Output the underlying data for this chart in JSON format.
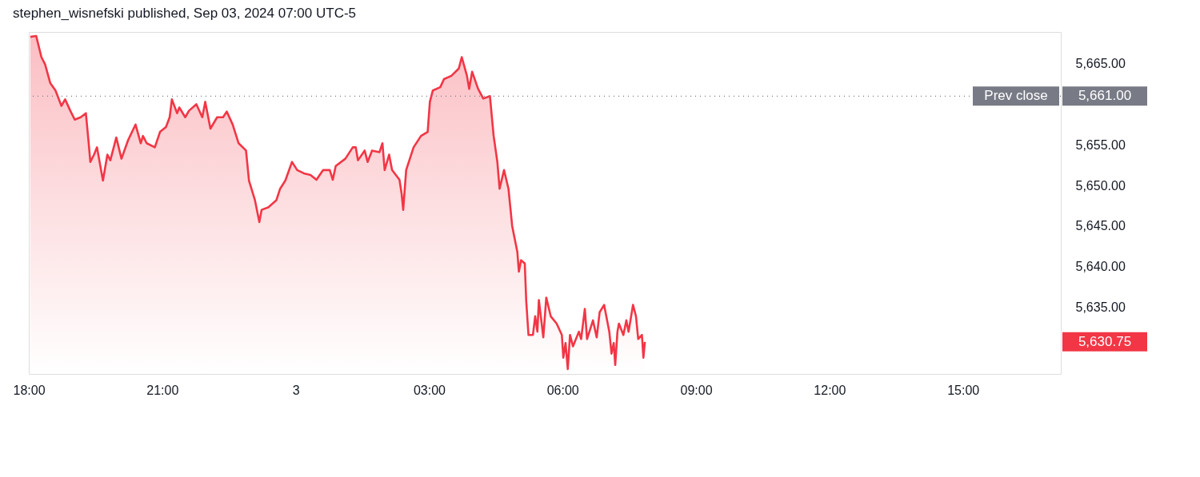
{
  "chart_data": {
    "type": "area",
    "title": "stephen_wisnefski published, Sep 03, 2024 07:00 UTC-5",
    "xlim": [
      "2024-09-02T18:00",
      "2024-09-03T17:12"
    ],
    "ylim": [
      5626.8,
      5668.9
    ],
    "xticks": [
      {
        "value": "2024-09-02T18:00",
        "label": "18:00"
      },
      {
        "value": "2024-09-02T21:00",
        "label": "21:00"
      },
      {
        "value": "2024-09-03T00:00",
        "label": "3"
      },
      {
        "value": "2024-09-03T03:00",
        "label": "03:00"
      },
      {
        "value": "2024-09-03T06:00",
        "label": "06:00"
      },
      {
        "value": "2024-09-03T09:00",
        "label": "09:00"
      },
      {
        "value": "2024-09-03T12:00",
        "label": "12:00"
      },
      {
        "value": "2024-09-03T15:00",
        "label": "15:00"
      }
    ],
    "yticks": [
      {
        "value": 5635,
        "label": "5,635.00"
      },
      {
        "value": 5640,
        "label": "5,640.00"
      },
      {
        "value": 5645,
        "label": "5,645.00"
      },
      {
        "value": 5650,
        "label": "5,650.00"
      },
      {
        "value": 5655,
        "label": "5,655.00"
      },
      {
        "value": 5665,
        "label": "5,665.00"
      }
    ],
    "grid": false,
    "ref_lines": [
      {
        "axis": "y",
        "value": 5661,
        "label": "Prev close",
        "color": "#787b86",
        "line_style": "dotted"
      }
    ],
    "annotations": [
      "5,661.00",
      "5,630.75"
    ],
    "series": [
      {
        "color": "#f23645",
        "x": [
          "2024-09-02T18:02",
          "2024-09-02T18:10",
          "2024-09-02T18:17",
          "2024-09-02T18:22",
          "2024-09-02T18:29",
          "2024-09-02T18:36",
          "2024-09-02T18:44",
          "2024-09-02T18:49",
          "2024-09-02T18:56",
          "2024-09-02T19:02",
          "2024-09-02T19:10",
          "2024-09-02T19:17",
          "2024-09-02T19:21",
          "2024-09-02T19:23",
          "2024-09-02T19:28",
          "2024-09-02T19:32",
          "2024-09-02T19:40",
          "2024-09-02T19:46",
          "2024-09-02T19:50",
          "2024-09-02T19:58",
          "2024-09-02T20:05",
          "2024-09-02T20:14",
          "2024-09-02T20:24",
          "2024-09-02T20:31",
          "2024-09-02T20:34",
          "2024-09-02T20:39",
          "2024-09-02T20:50",
          "2024-09-02T20:57",
          "2024-09-02T21:05",
          "2024-09-02T21:10",
          "2024-09-02T21:13",
          "2024-09-02T21:20",
          "2024-09-02T21:23",
          "2024-09-02T21:31",
          "2024-09-02T21:36",
          "2024-09-02T21:46",
          "2024-09-02T21:54",
          "2024-09-02T21:58",
          "2024-09-02T22:05",
          "2024-09-02T22:14",
          "2024-09-02T22:22",
          "2024-09-02T22:27",
          "2024-09-02T22:35",
          "2024-09-02T22:43",
          "2024-09-02T22:53",
          "2024-09-02T22:57",
          "2024-09-02T23:05",
          "2024-09-02T23:11",
          "2024-09-02T23:14",
          "2024-09-02T23:23",
          "2024-09-02T23:34",
          "2024-09-02T23:39",
          "2024-09-02T23:46",
          "2024-09-02T23:55",
          "2024-09-03T00:02",
          "2024-09-03T00:11",
          "2024-09-03T00:20",
          "2024-09-03T00:28",
          "2024-09-03T00:37",
          "2024-09-03T00:46",
          "2024-09-03T00:50",
          "2024-09-03T00:54",
          "2024-09-03T01:07",
          "2024-09-03T01:17",
          "2024-09-03T01:21",
          "2024-09-03T01:24",
          "2024-09-03T01:33",
          "2024-09-03T01:37",
          "2024-09-03T01:43",
          "2024-09-03T01:53",
          "2024-09-03T01:57",
          "2024-09-03T02:00",
          "2024-09-03T02:06",
          "2024-09-03T02:10",
          "2024-09-03T02:20",
          "2024-09-03T02:23",
          "2024-09-03T02:25",
          "2024-09-03T02:29",
          "2024-09-03T02:39",
          "2024-09-03T02:49",
          "2024-09-03T02:58",
          "2024-09-03T03:01",
          "2024-09-03T03:05",
          "2024-09-03T03:15",
          "2024-09-03T03:20",
          "2024-09-03T03:30",
          "2024-09-03T03:40",
          "2024-09-03T03:44",
          "2024-09-03T03:51",
          "2024-09-03T03:54",
          "2024-09-03T03:58",
          "2024-09-03T04:06",
          "2024-09-03T04:13",
          "2024-09-03T04:22",
          "2024-09-03T04:27",
          "2024-09-03T04:32",
          "2024-09-03T04:35",
          "2024-09-03T04:41",
          "2024-09-03T04:47",
          "2024-09-03T04:52",
          "2024-09-03T04:59",
          "2024-09-03T05:01",
          "2024-09-03T05:04",
          "2024-09-03T05:09",
          "2024-09-03T05:11",
          "2024-09-03T05:14",
          "2024-09-03T05:20",
          "2024-09-03T05:23",
          "2024-09-03T05:26",
          "2024-09-03T05:28",
          "2024-09-03T05:34",
          "2024-09-03T05:38",
          "2024-09-03T05:44",
          "2024-09-03T05:52",
          "2024-09-03T05:59",
          "2024-09-03T06:01",
          "2024-09-03T06:04",
          "2024-09-03T06:07",
          "2024-09-03T06:10",
          "2024-09-03T06:14",
          "2024-09-03T06:22",
          "2024-09-03T06:25",
          "2024-09-03T06:30",
          "2024-09-03T06:33",
          "2024-09-03T06:41",
          "2024-09-03T06:46",
          "2024-09-03T06:50",
          "2024-09-03T06:56",
          "2024-09-03T07:03",
          "2024-09-03T07:06",
          "2024-09-03T07:09",
          "2024-09-03T07:11",
          "2024-09-03T07:14",
          "2024-09-03T07:16",
          "2024-09-03T07:22",
          "2024-09-03T07:26",
          "2024-09-03T07:29",
          "2024-09-03T07:35",
          "2024-09-03T07:39",
          "2024-09-03T07:42",
          "2024-09-03T07:47",
          "2024-09-03T07:49",
          "2024-09-03T07:51"
        ],
        "values": [
          5668.3,
          5668.4,
          5665.8,
          5664.9,
          5662.6,
          5661.7,
          5659.8,
          5660.6,
          5659.2,
          5658.1,
          5658.4,
          5658.9,
          5655.0,
          5652.9,
          5653.8,
          5654.7,
          5650.6,
          5653.8,
          5653.1,
          5655.9,
          5653.3,
          5655.6,
          5657.5,
          5655.2,
          5656.1,
          5655.2,
          5654.7,
          5656.6,
          5657.2,
          5658.4,
          5660.6,
          5658.9,
          5659.6,
          5658.4,
          5659.2,
          5660.0,
          5658.4,
          5660.3,
          5657.0,
          5658.4,
          5658.4,
          5659.1,
          5657.5,
          5655.2,
          5654.3,
          5650.6,
          5648.2,
          5645.5,
          5647.0,
          5647.3,
          5648.2,
          5649.6,
          5650.6,
          5652.9,
          5651.9,
          5651.5,
          5651.3,
          5650.7,
          5651.9,
          5651.9,
          5650.7,
          5652.4,
          5653.3,
          5654.7,
          5654.7,
          5653.1,
          5654.3,
          5652.9,
          5654.3,
          5654.1,
          5655.2,
          5651.9,
          5653.8,
          5651.9,
          5650.7,
          5648.9,
          5647.0,
          5651.9,
          5654.7,
          5656.1,
          5656.6,
          5660.3,
          5661.7,
          5662.1,
          5663.1,
          5663.5,
          5664.4,
          5665.8,
          5663.5,
          5661.9,
          5664.0,
          5661.9,
          5660.7,
          5661.0,
          5656.1,
          5652.9,
          5649.6,
          5651.9,
          5649.6,
          5645.0,
          5641.8,
          5639.4,
          5640.8,
          5640.4,
          5635.7,
          5631.6,
          5631.6,
          5633.9,
          5632.0,
          5635.9,
          5631.3,
          5636.2,
          5633.9,
          5633.0,
          5631.6,
          5628.8,
          5630.6,
          5627.4,
          5631.6,
          5630.2,
          5632.0,
          5631.1,
          5634.8,
          5631.1,
          5633.4,
          5631.3,
          5634.4,
          5635.3,
          5632.0,
          5629.3,
          5630.6,
          5627.9,
          5632.0,
          5633.0,
          5631.6,
          5633.4,
          5632.0,
          5635.3,
          5633.9,
          5631.1,
          5631.6,
          5628.8,
          5630.75
        ]
      }
    ]
  }
}
